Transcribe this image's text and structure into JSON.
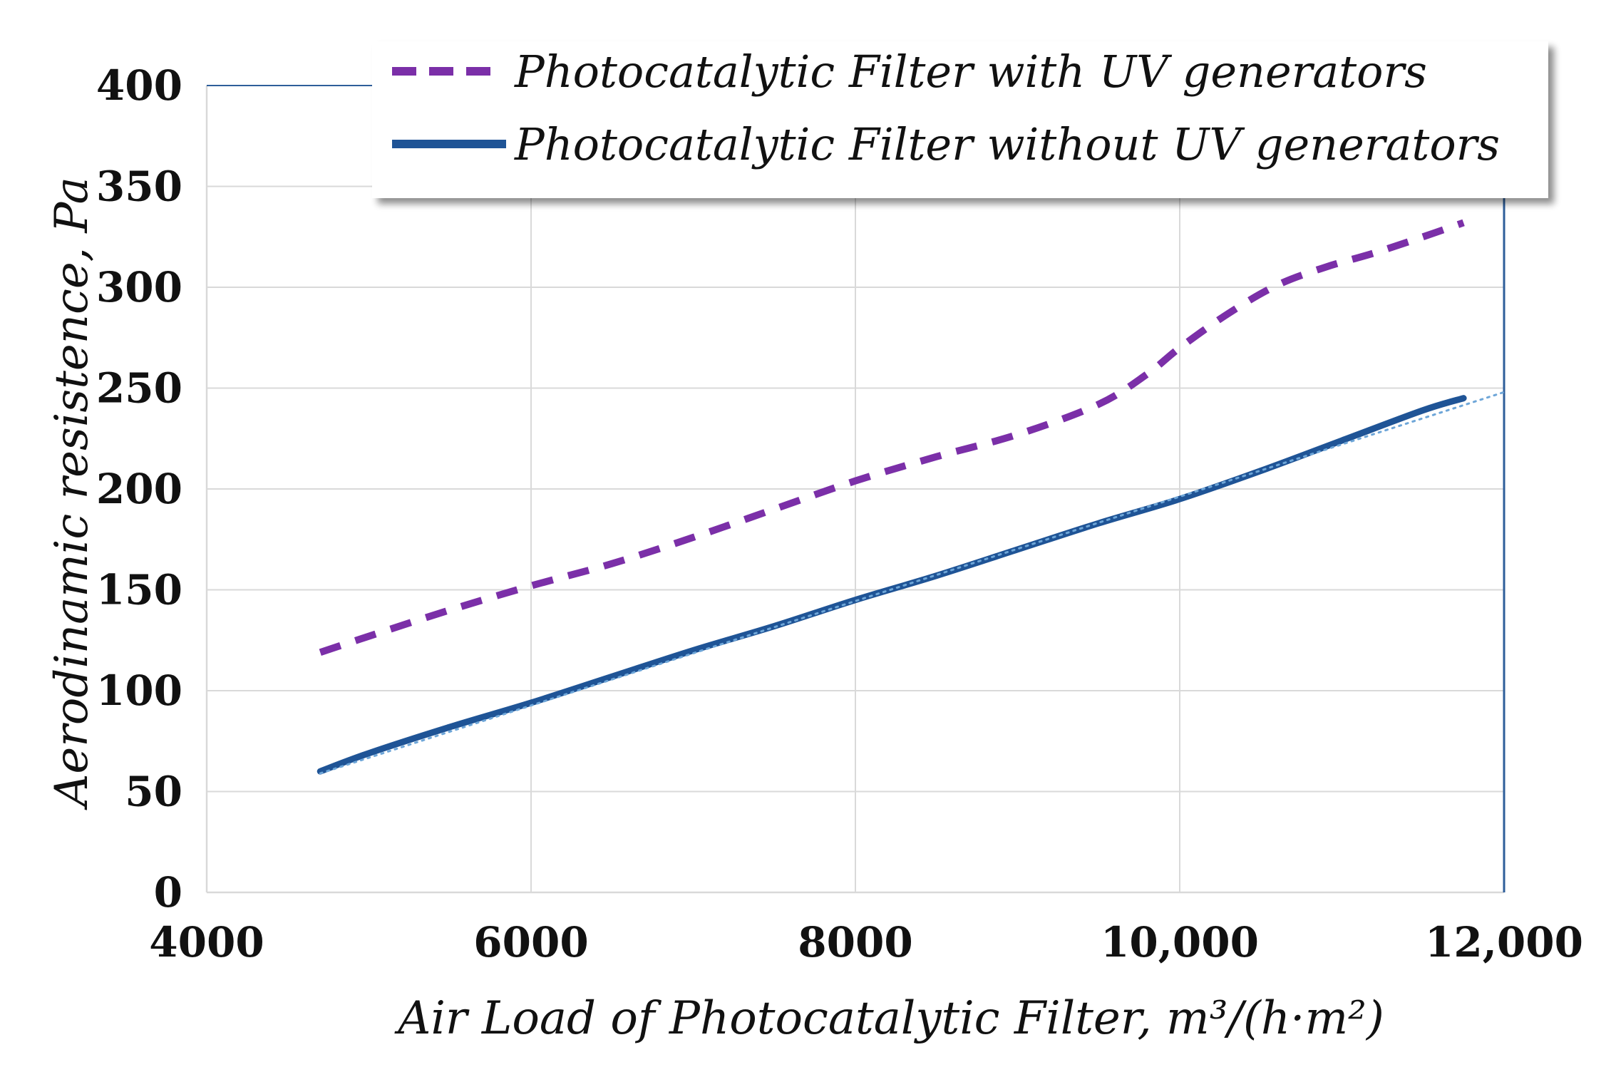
{
  "chart_data": {
    "type": "line",
    "xlabel": "Air Load of Photocatalytic Filter, m³/(h·m²)",
    "ylabel": "Aerodinamic resistence, Pa",
    "xlim": [
      4000,
      12000
    ],
    "ylim": [
      0,
      400
    ],
    "x_ticks": [
      4000,
      6000,
      8000,
      10000,
      12000
    ],
    "x_tick_labels": [
      "4000",
      "6000",
      "8000",
      "10,000",
      "12,000"
    ],
    "y_ticks": [
      0,
      50,
      100,
      150,
      200,
      250,
      300,
      350,
      400
    ],
    "y_tick_labels": [
      "0",
      "50",
      "100",
      "150",
      "200",
      "250",
      "300",
      "350",
      "400"
    ],
    "grid": true,
    "legend_position": "top-right",
    "series": [
      {
        "name": "Photocatalytic Filter with UV generators",
        "style": "dashed",
        "color": "#7b2fa8",
        "x": [
          4700,
          5000,
          5500,
          6000,
          6500,
          7000,
          7500,
          8000,
          8500,
          9000,
          9500,
          9800,
          10000,
          10300,
          10600,
          10900,
          11200,
          11500,
          11750
        ],
        "y": [
          119,
          127,
          140,
          152,
          163,
          176,
          190,
          204,
          216,
          227,
          242,
          257,
          270,
          287,
          301,
          310,
          317,
          325,
          332
        ]
      },
      {
        "name": "Photocatalytic Filter without UV generators",
        "style": "solid",
        "color": "#1f5496",
        "x": [
          4700,
          5000,
          5500,
          6000,
          6500,
          7000,
          7500,
          8000,
          8500,
          9000,
          9500,
          10000,
          10500,
          11000,
          11500,
          11750
        ],
        "y": [
          60,
          69,
          82,
          94,
          107,
          120,
          132,
          145,
          157,
          170,
          183,
          195,
          209,
          224,
          239,
          245
        ]
      },
      {
        "style": "dotted-trendline",
        "color": "#6ea6d8",
        "x": [
          4700,
          12000
        ],
        "y": [
          59,
          248
        ]
      }
    ]
  },
  "colors": {
    "grid": "#d9d9d9",
    "axis_frame": "#2e5e9a",
    "legend_shadow": "#cccccc"
  }
}
